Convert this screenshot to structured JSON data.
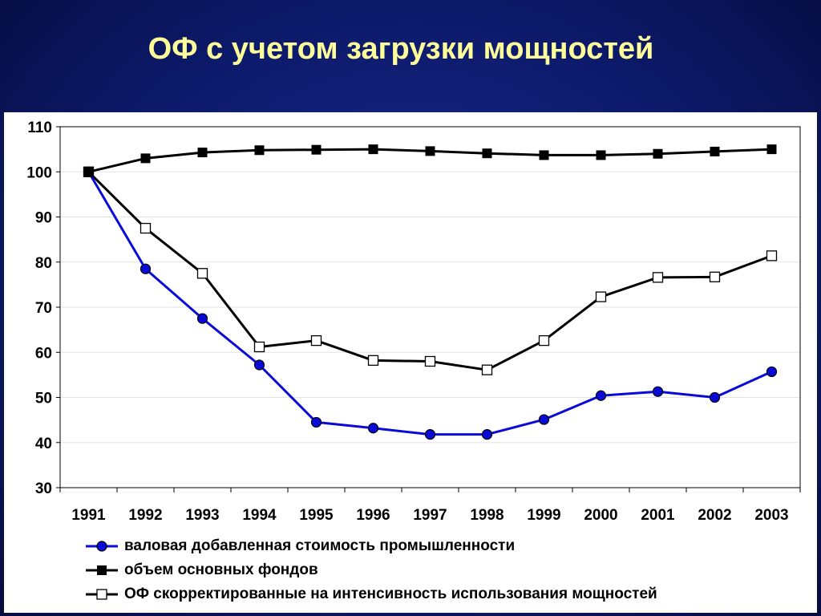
{
  "slide": {
    "title": "ОФ с учетом загрузки мощностей"
  },
  "colors": {
    "background": "#0d1a6b",
    "title": "#ffff99",
    "panel": "#ffffff"
  },
  "chart_data": {
    "type": "line",
    "title": "",
    "xlabel": "",
    "ylabel": "",
    "x": [
      "1991",
      "1992",
      "1993",
      "1994",
      "1995",
      "1996",
      "1997",
      "1998",
      "1999",
      "2000",
      "2001",
      "2002",
      "2003"
    ],
    "ylim": [
      30,
      110
    ],
    "yticks": [
      30,
      40,
      50,
      60,
      70,
      80,
      90,
      100,
      110
    ],
    "grid": true,
    "legend_position": "bottom",
    "series": [
      {
        "name": "валовая добавленная стоимость промышленности",
        "color": "#0a0ad8",
        "marker": "filled-circle",
        "values": [
          100,
          78.5,
          67.5,
          57.2,
          44.5,
          43.2,
          41.8,
          41.8,
          45.1,
          50.4,
          51.3,
          50.0,
          55.7
        ]
      },
      {
        "name": "объем основных фондов",
        "color": "#000000",
        "marker": "filled-square",
        "values": [
          100,
          103.0,
          104.3,
          104.8,
          104.9,
          105.0,
          104.6,
          104.1,
          103.7,
          103.7,
          104.0,
          104.5,
          105.0
        ]
      },
      {
        "name": "ОФ скорректированные на интенсивность использования мощностей",
        "color": "#000000",
        "marker": "open-square",
        "values": [
          100,
          87.5,
          77.5,
          61.2,
          62.6,
          58.2,
          58.0,
          56.1,
          62.6,
          72.3,
          76.6,
          76.7,
          81.4
        ]
      }
    ]
  }
}
